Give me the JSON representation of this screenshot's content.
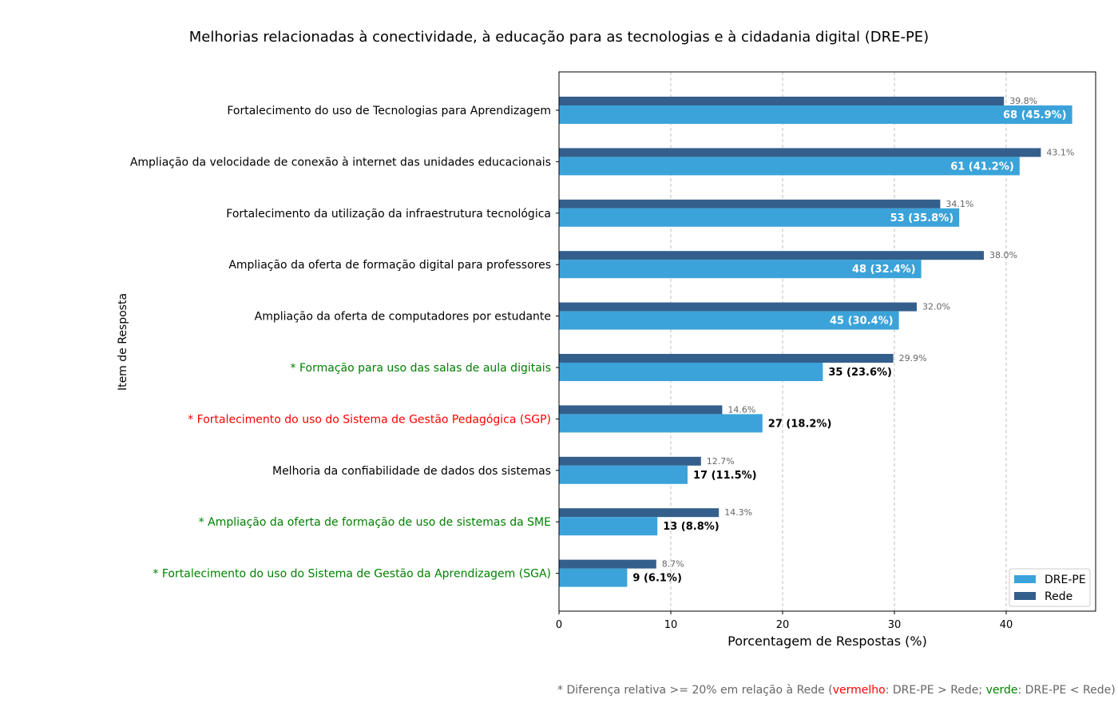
{
  "chart_data": {
    "type": "bar",
    "orientation": "horizontal",
    "title": "Melhorias relacionadas à conectividade, à educação para as tecnologias e à cidadania digital (DRE-PE)",
    "xlabel": "Porcentagem de Respostas (%)",
    "ylabel": "Item de Resposta",
    "xlim": [
      0,
      48
    ],
    "xticks": [
      "0",
      "10",
      "20",
      "30",
      "40"
    ],
    "grid": "x-dashed",
    "legend_placement": "bottom-right",
    "categories": [
      {
        "label": "Fortalecimento do uso de Tecnologias para Aprendizagem",
        "color": "#000000"
      },
      {
        "label": "Ampliação da velocidade de conexão à internet das unidades educacionais",
        "color": "#000000"
      },
      {
        "label": "Fortalecimento da utilização da infraestrutura tecnológica",
        "color": "#000000"
      },
      {
        "label": "Ampliação da oferta de formação digital para professores",
        "color": "#000000"
      },
      {
        "label": "Ampliação da oferta de computadores por estudante",
        "color": "#000000"
      },
      {
        "label": "* Formação para uso das salas de aula digitais",
        "color": "#008000"
      },
      {
        "label": "* Fortalecimento do uso do Sistema de Gestão Pedagógica (SGP)",
        "color": "#ff0000"
      },
      {
        "label": "Melhoria da confiabilidade de dados dos sistemas",
        "color": "#000000"
      },
      {
        "label": "* Ampliação da oferta de formação de uso de sistemas da SME",
        "color": "#008000"
      },
      {
        "label": "* Fortalecimento do uso do Sistema de Gestão da Aprendizagem (SGA)",
        "color": "#008000"
      }
    ],
    "series": [
      {
        "name": "DRE-PE",
        "color": "#3ba3d9",
        "values": [
          45.9,
          41.2,
          35.8,
          32.4,
          30.4,
          23.6,
          18.2,
          11.5,
          8.8,
          6.1
        ],
        "labels": [
          "68 (45.9%)",
          "61 (41.2%)",
          "53 (35.8%)",
          "48 (32.4%)",
          "45 (30.4%)",
          "35 (23.6%)",
          "27 (18.2%)",
          "17 (11.5%)",
          "13 (8.8%)",
          "9 (6.1%)"
        ],
        "label_inside": [
          true,
          true,
          true,
          true,
          true,
          false,
          false,
          false,
          false,
          false
        ]
      },
      {
        "name": "Rede",
        "color": "#345f8c",
        "values": [
          39.8,
          43.1,
          34.1,
          38.0,
          32.0,
          29.9,
          14.6,
          12.7,
          14.3,
          8.7
        ],
        "labels": [
          "39.8%",
          "43.1%",
          "34.1%",
          "38.0%",
          "32.0%",
          "29.9%",
          "14.6%",
          "12.7%",
          "14.3%",
          "8.7%"
        ]
      }
    ]
  },
  "footnote": {
    "prefix": "* Diferença relativa >= 20% em relação à Rede (",
    "red_word": "vermelho",
    "middle": ": DRE-PE > Rede; ",
    "green_word": "verde",
    "suffix": ": DRE-PE < Rede)"
  }
}
